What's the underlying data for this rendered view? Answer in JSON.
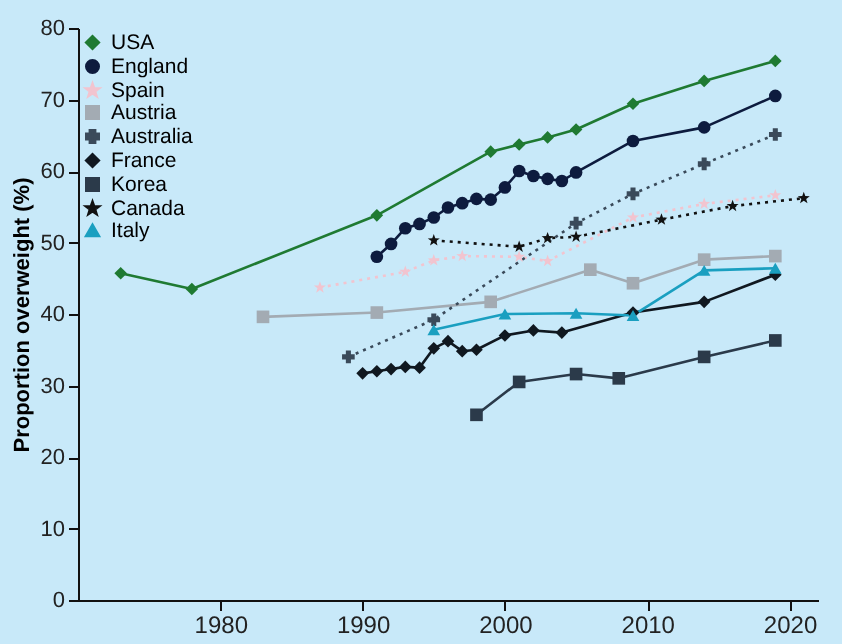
{
  "chart_data": {
    "type": "line",
    "ylabel": "Proportion overweight (%)",
    "xlim": [
      1970,
      2022
    ],
    "xticks": [
      1980,
      1990,
      2000,
      2010,
      2020
    ],
    "ylim": [
      0,
      80
    ],
    "yticks": [
      0,
      10,
      20,
      30,
      40,
      50,
      60,
      70,
      80
    ],
    "grid": false,
    "legend": "top left",
    "series": [
      {
        "name": "USA",
        "color": "#1f7a32",
        "marker": "diamond",
        "line_style": "solid",
        "x": [
          1973,
          1978,
          1991,
          1999,
          2001,
          2003,
          2005,
          2009,
          2014,
          2019
        ],
        "values": [
          45.7,
          43.5,
          53.8,
          62.7,
          63.7,
          64.7,
          65.8,
          69.4,
          72.6,
          75.4
        ]
      },
      {
        "name": "England",
        "color": "#0d1b3e",
        "marker": "circle",
        "line_style": "solid",
        "x": [
          1991,
          1992,
          1993,
          1994,
          1995,
          1996,
          1997,
          1998,
          1999,
          2000,
          2001,
          2002,
          2003,
          2004,
          2005,
          2009,
          2014,
          2019
        ],
        "values": [
          48.0,
          49.8,
          52.0,
          52.6,
          53.5,
          54.9,
          55.5,
          56.1,
          56.0,
          57.7,
          60.0,
          59.3,
          58.9,
          58.6,
          59.8,
          64.2,
          66.1,
          70.5
        ]
      },
      {
        "name": "Spain",
        "color": "#f2c4cf",
        "marker": "star",
        "line_style": "dotted",
        "x": [
          1987,
          1993,
          1995,
          1997,
          2001,
          2003,
          2009,
          2014,
          2019
        ],
        "values": [
          43.7,
          45.9,
          47.5,
          48.1,
          48.0,
          47.4,
          53.5,
          55.4,
          56.6
        ]
      },
      {
        "name": "Austria",
        "color": "#a3abb3",
        "marker": "square",
        "line_style": "solid",
        "x": [
          1983,
          1991,
          1999,
          2006,
          2009,
          2014,
          2019
        ],
        "values": [
          39.6,
          40.2,
          41.7,
          46.2,
          44.3,
          47.6,
          48.1
        ]
      },
      {
        "name": "Australia",
        "color": "#3a4a5a",
        "marker": "cross",
        "line_style": "dotted",
        "x": [
          1989,
          1995,
          2005,
          2009,
          2014,
          2019
        ],
        "values": [
          34.0,
          39.2,
          52.7,
          56.8,
          61.0,
          65.1
        ]
      },
      {
        "name": "France",
        "color": "#101820",
        "marker": "diamond",
        "line_style": "solid",
        "x": [
          1990,
          1991,
          1992,
          1993,
          1994,
          1995,
          1996,
          1997,
          1998,
          2000,
          2002,
          2004,
          2009,
          2014,
          2019
        ],
        "values": [
          31.7,
          32.0,
          32.3,
          32.6,
          32.5,
          35.2,
          36.2,
          34.8,
          35.0,
          37.0,
          37.7,
          37.4,
          40.2,
          41.7,
          45.5
        ]
      },
      {
        "name": "Korea",
        "color": "#2b3a4a",
        "marker": "square",
        "line_style": "solid",
        "x": [
          1998,
          2001,
          2005,
          2008,
          2014,
          2019
        ],
        "values": [
          25.9,
          30.5,
          31.6,
          31.0,
          34.0,
          36.3
        ]
      },
      {
        "name": "Canada",
        "color": "#111111",
        "marker": "star",
        "line_style": "dotted",
        "x": [
          1995,
          2001,
          2003,
          2005,
          2011,
          2016,
          2021
        ],
        "values": [
          50.3,
          49.4,
          50.6,
          50.8,
          53.2,
          55.1,
          56.2
        ]
      },
      {
        "name": "Italy",
        "color": "#1a9fc0",
        "marker": "triangle",
        "line_style": "solid",
        "x": [
          1995,
          2000,
          2005,
          2009,
          2014,
          2019
        ],
        "values": [
          37.8,
          40.0,
          40.1,
          39.8,
          46.1,
          46.4
        ]
      }
    ]
  }
}
